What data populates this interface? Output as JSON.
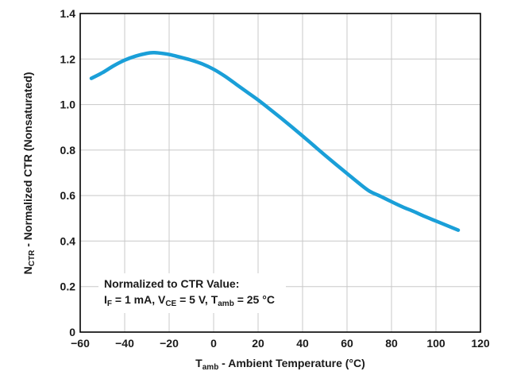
{
  "chart_data": {
    "type": "line",
    "title": "",
    "xlabel": {
      "main": "T",
      "sub": "amb",
      "rest": " - Ambient Temperature (°C)"
    },
    "ylabel": {
      "main": "N",
      "sub": "CTR",
      "rest": " - Normalized CTR (Nonsaturated)"
    },
    "xlim": [
      -60,
      120
    ],
    "ylim": [
      0,
      1.4
    ],
    "xticks": [
      -60,
      -40,
      -20,
      0,
      20,
      40,
      60,
      80,
      100,
      120
    ],
    "xtick_labels": [
      "−60",
      "−40",
      "−20",
      "0",
      "20",
      "40",
      "60",
      "80",
      "100",
      "120"
    ],
    "yticks": [
      0,
      0.2,
      0.4,
      0.6,
      0.8,
      1.0,
      1.2,
      1.4
    ],
    "ytick_labels": [
      "0",
      "0.2",
      "0.4",
      "0.6",
      "0.8",
      "1.0",
      "1.2",
      "1.4"
    ],
    "grid": true,
    "series": [
      {
        "name": "NCTR",
        "color": "#1a9fd8",
        "x": [
          -55,
          -50,
          -45,
          -40,
          -35,
          -30,
          -27,
          -25,
          -20,
          -15,
          -10,
          -5,
          0,
          5,
          10,
          15,
          20,
          25,
          30,
          35,
          40,
          45,
          50,
          55,
          60,
          65,
          70,
          75,
          80,
          85,
          90,
          95,
          100,
          105,
          110
        ],
        "y": [
          1.115,
          1.14,
          1.17,
          1.195,
          1.213,
          1.225,
          1.228,
          1.227,
          1.22,
          1.208,
          1.195,
          1.178,
          1.155,
          1.125,
          1.09,
          1.055,
          1.02,
          0.982,
          0.943,
          0.903,
          0.862,
          0.82,
          0.778,
          0.737,
          0.697,
          0.657,
          0.62,
          0.597,
          0.573,
          0.55,
          0.53,
          0.508,
          0.488,
          0.468,
          0.448
        ]
      }
    ],
    "annotation": {
      "line1": "Normalized to CTR Value:",
      "line2": {
        "if_main": "I",
        "if_sub": "F",
        "if_rest": " = 1 mA, ",
        "vce_main": "V",
        "vce_sub": "CE",
        "vce_rest": " = 5 V, ",
        "tamb_main": "T",
        "tamb_sub": "amb",
        "tamb_rest": " = 25 °C"
      }
    }
  }
}
